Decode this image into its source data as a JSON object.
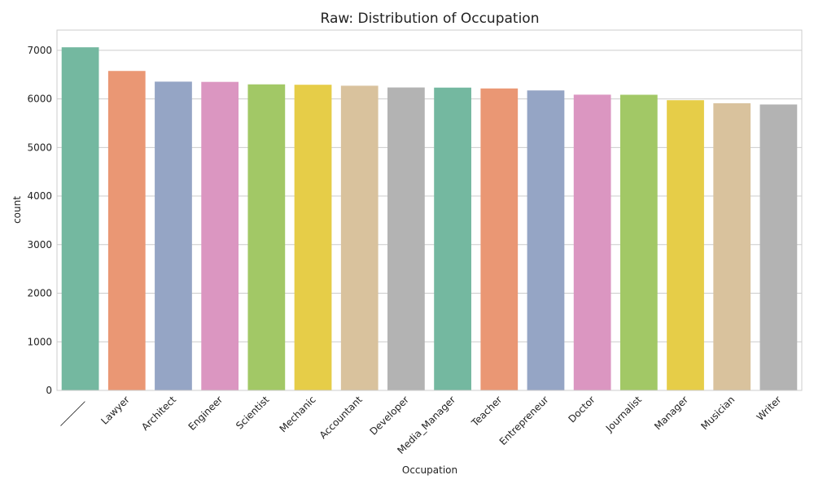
{
  "chart_data": {
    "type": "bar",
    "title": "Raw: Distribution of Occupation",
    "xlabel": "Occupation",
    "ylabel": "count",
    "categories": [
      "_______",
      "Lawyer",
      "Architect",
      "Engineer",
      "Scientist",
      "Mechanic",
      "Accountant",
      "Developer",
      "Media_Manager",
      "Teacher",
      "Entrepreneur",
      "Doctor",
      "Journalist",
      "Manager",
      "Musician",
      "Writer"
    ],
    "values": [
      7062,
      6575,
      6355,
      6350,
      6299,
      6291,
      6271,
      6235,
      6232,
      6215,
      6174,
      6087,
      6085,
      5973,
      5911,
      5885
    ],
    "ylim": [
      0,
      7416
    ],
    "yticks": [
      0,
      1000,
      2000,
      3000,
      4000,
      5000,
      6000,
      7000
    ],
    "grid": "horizontal",
    "colors": [
      "#74b8a0",
      "#ea9774",
      "#95a5c5",
      "#db96c1",
      "#a2c866",
      "#e6cd48",
      "#d9c29d",
      "#b3b3b3",
      "#74b8a0",
      "#ea9774",
      "#95a5c5",
      "#db96c1",
      "#a2c866",
      "#e6cd48",
      "#d9c29d",
      "#b3b3b3"
    ]
  }
}
